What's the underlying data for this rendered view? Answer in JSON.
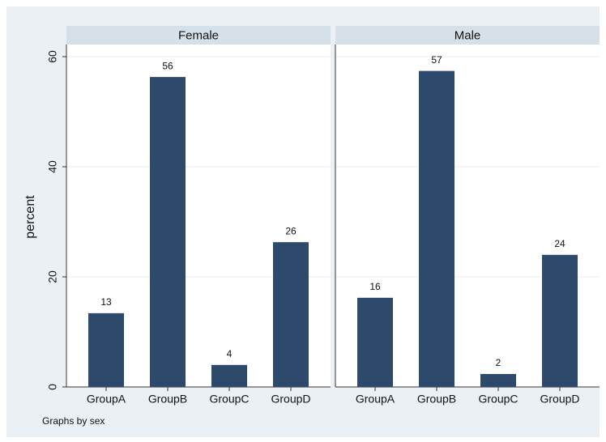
{
  "chart_data": [
    {
      "type": "bar",
      "title": "Female",
      "ylabel": "percent",
      "categories": [
        "GroupA",
        "GroupB",
        "GroupC",
        "GroupD"
      ],
      "values": [
        13.4,
        56.3,
        4.0,
        26.3
      ],
      "value_labels": [
        "13",
        "56",
        "4",
        "26"
      ],
      "color": "#2d4a6d",
      "ylim": [
        0,
        62.2
      ],
      "yticks": [
        0,
        20,
        40,
        60
      ],
      "grid": true
    },
    {
      "type": "bar",
      "title": "Male",
      "categories": [
        "GroupA",
        "GroupB",
        "GroupC",
        "GroupD"
      ],
      "values": [
        16.2,
        57.4,
        2.35,
        24.0
      ],
      "value_labels": [
        "16",
        "57",
        "2",
        "24"
      ],
      "color": "#2d4a6d",
      "ylim": [
        0,
        62.2
      ],
      "yticks": [
        0,
        20,
        40,
        60
      ],
      "grid": true
    }
  ],
  "note": "Graphs by sex"
}
